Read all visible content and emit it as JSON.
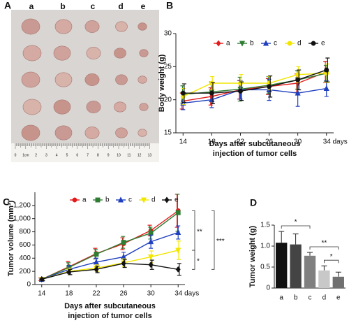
{
  "panel_a": {
    "panel_label": "A",
    "columns": [
      "a",
      "b",
      "c",
      "d",
      "e"
    ],
    "ruler_labels": [
      "0",
      "1cm",
      "2",
      "3",
      "4",
      "5",
      "6",
      "7",
      "8",
      "9",
      "10",
      "11",
      "12",
      "13"
    ]
  },
  "chart_data": [
    {
      "type": "line",
      "panel_label": "B",
      "y_label": "Body weight (g)",
      "x_label": [
        "Days after subcutaneous",
        "injection of tumor cells"
      ],
      "x": [
        14,
        18,
        22,
        26,
        30,
        34
      ],
      "xlim": [
        13,
        35
      ],
      "xticks": [
        14,
        18,
        22,
        26,
        30,
        {
          "value": 34,
          "label": "34 days"
        }
      ],
      "ylim": [
        15,
        30
      ],
      "yticks": [
        15,
        20,
        25,
        30
      ],
      "series": [
        {
          "name": "a",
          "color": "#e41a1c",
          "marker": "diamond",
          "values": [
            19.8,
            20.5,
            21.5,
            22.0,
            22.5,
            24.2
          ],
          "errors": [
            1.2,
            1.3,
            1.4,
            1.2,
            1.4,
            1.6
          ]
        },
        {
          "name": "b",
          "color": "#2e7d32",
          "marker": "triangle-down",
          "values": [
            20.8,
            21.2,
            21.6,
            22.2,
            23.0,
            24.0
          ],
          "errors": [
            1.3,
            1.5,
            1.8,
            1.3,
            1.4,
            1.2
          ]
        },
        {
          "name": "c",
          "color": "#1f3fbf",
          "marker": "triangle-up",
          "values": [
            19.5,
            20.0,
            21.5,
            21.5,
            21.0,
            21.7
          ],
          "errors": [
            1.0,
            1.2,
            1.4,
            1.6,
            2.0,
            1.2
          ]
        },
        {
          "name": "d",
          "color": "#f2e600",
          "marker": "circle",
          "values": [
            20.5,
            22.5,
            22.5,
            22.5,
            23.8,
            24.0
          ],
          "errors": [
            1.2,
            1.0,
            1.3,
            1.0,
            1.2,
            1.4
          ]
        },
        {
          "name": "e",
          "color": "#111111",
          "marker": "circle",
          "values": [
            21.0,
            21.0,
            21.3,
            22.0,
            23.0,
            24.5
          ],
          "errors": [
            1.4,
            1.6,
            1.4,
            1.6,
            1.5,
            1.8
          ]
        }
      ]
    },
    {
      "type": "line",
      "panel_label": "C",
      "y_label": "Tumor volume (mm³)",
      "x_label": [
        "Days after subcutaneous",
        "injection of tumor cells"
      ],
      "x": [
        14,
        18,
        22,
        26,
        30,
        34
      ],
      "xlim": [
        13,
        35
      ],
      "xticks": [
        14,
        18,
        22,
        26,
        30,
        {
          "value": 34,
          "label": "34 days"
        }
      ],
      "ylim": [
        0,
        1400
      ],
      "yticks": [
        0,
        200,
        400,
        600,
        800,
        {
          "value": 1000,
          "label": "1,000"
        },
        {
          "value": 1200,
          "label": "1,200"
        }
      ],
      "series": [
        {
          "name": "a",
          "color": "#e41a1c",
          "marker": "circle",
          "values": [
            80,
            270,
            470,
            620,
            820,
            1120
          ],
          "errors": [
            20,
            80,
            80,
            90,
            80,
            250
          ]
        },
        {
          "name": "b",
          "color": "#2e7d32",
          "marker": "square",
          "values": [
            80,
            260,
            460,
            640,
            780,
            1090
          ],
          "errors": [
            20,
            70,
            70,
            90,
            90,
            280
          ]
        },
        {
          "name": "c",
          "color": "#1f3fbf",
          "marker": "triangle-up",
          "values": [
            80,
            230,
            340,
            420,
            650,
            790
          ],
          "errors": [
            20,
            60,
            60,
            70,
            100,
            100
          ]
        },
        {
          "name": "d",
          "color": "#f2e600",
          "marker": "triangle-down",
          "values": [
            80,
            200,
            250,
            330,
            420,
            520
          ],
          "errors": [
            20,
            50,
            50,
            60,
            90,
            140
          ]
        },
        {
          "name": "e",
          "color": "#111111",
          "marker": "diamond",
          "values": [
            80,
            190,
            230,
            320,
            300,
            230
          ],
          "errors": [
            20,
            40,
            50,
            60,
            70,
            90
          ]
        }
      ],
      "annotations": [
        {
          "text": "**",
          "between": [
            "a",
            "d"
          ]
        },
        {
          "text": "*",
          "between": [
            "d",
            "e"
          ]
        },
        {
          "text": "***",
          "between": [
            "a",
            "e"
          ]
        }
      ]
    },
    {
      "type": "bar",
      "panel_label": "D",
      "y_label": "Tumor weight (g)",
      "categories": [
        "a",
        "b",
        "c",
        "d",
        "e"
      ],
      "values": [
        1.08,
        1.04,
        0.77,
        0.42,
        0.27
      ],
      "errors": [
        0.27,
        0.25,
        0.08,
        0.11,
        0.11
      ],
      "colors": [
        "#111111",
        "#444444",
        "#808080",
        "#c8c8c8",
        "#707070"
      ],
      "ylim": [
        0,
        1.5
      ],
      "yticks": [
        0,
        0.5,
        {
          "value": 1,
          "label": "1.0"
        },
        1.5
      ],
      "annotations": [
        {
          "text": "*",
          "between": [
            "a",
            "c"
          ]
        },
        {
          "text": "**",
          "between": [
            "c",
            "e"
          ]
        },
        {
          "text": "*",
          "between": [
            "d",
            "e"
          ]
        }
      ]
    }
  ]
}
